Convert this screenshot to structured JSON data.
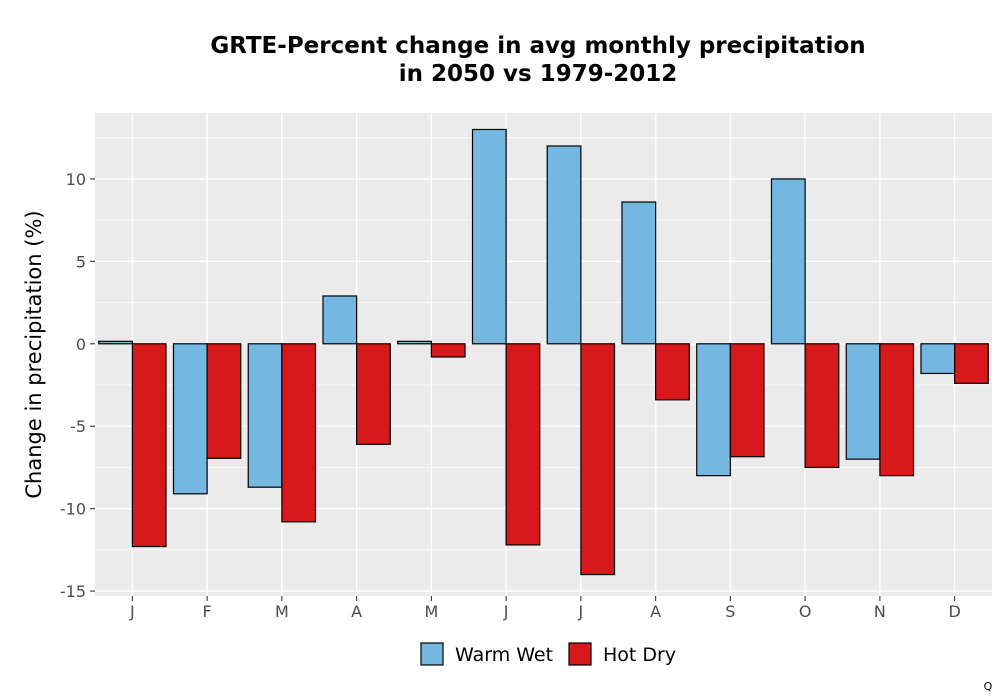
{
  "chart_data": {
    "type": "bar",
    "title": [
      "GRTE-Percent change in avg monthly precipitation",
      "in 2050 vs 1979-2012"
    ],
    "xlabel": "",
    "ylabel": "Change in precipitation (%)",
    "categories": [
      "J",
      "F",
      "M",
      "A",
      "M",
      "J",
      "J",
      "A",
      "S",
      "O",
      "N",
      "D"
    ],
    "series": [
      {
        "name": "Warm Wet",
        "color": "#74b7e1",
        "values": [
          0.15,
          -9.1,
          -8.7,
          2.9,
          0.15,
          13.0,
          12.0,
          8.6,
          -8.0,
          10.0,
          -7.0,
          -1.8
        ]
      },
      {
        "name": "Hot Dry",
        "color": "#d7191c",
        "values": [
          -12.3,
          -6.95,
          -10.8,
          -6.1,
          -0.8,
          -12.2,
          -14.0,
          -3.4,
          -6.85,
          -7.5,
          -8.0,
          -2.4
        ]
      }
    ],
    "ylim": [
      -15.3,
      14.0
    ],
    "yticks": [
      -15,
      -10,
      -5,
      0,
      5,
      10
    ],
    "ytick_labels": [
      "-15",
      "-10",
      "-5",
      "0",
      "5",
      "10"
    ],
    "grid": true,
    "legend": "bottom"
  },
  "corner_mark": "Q"
}
